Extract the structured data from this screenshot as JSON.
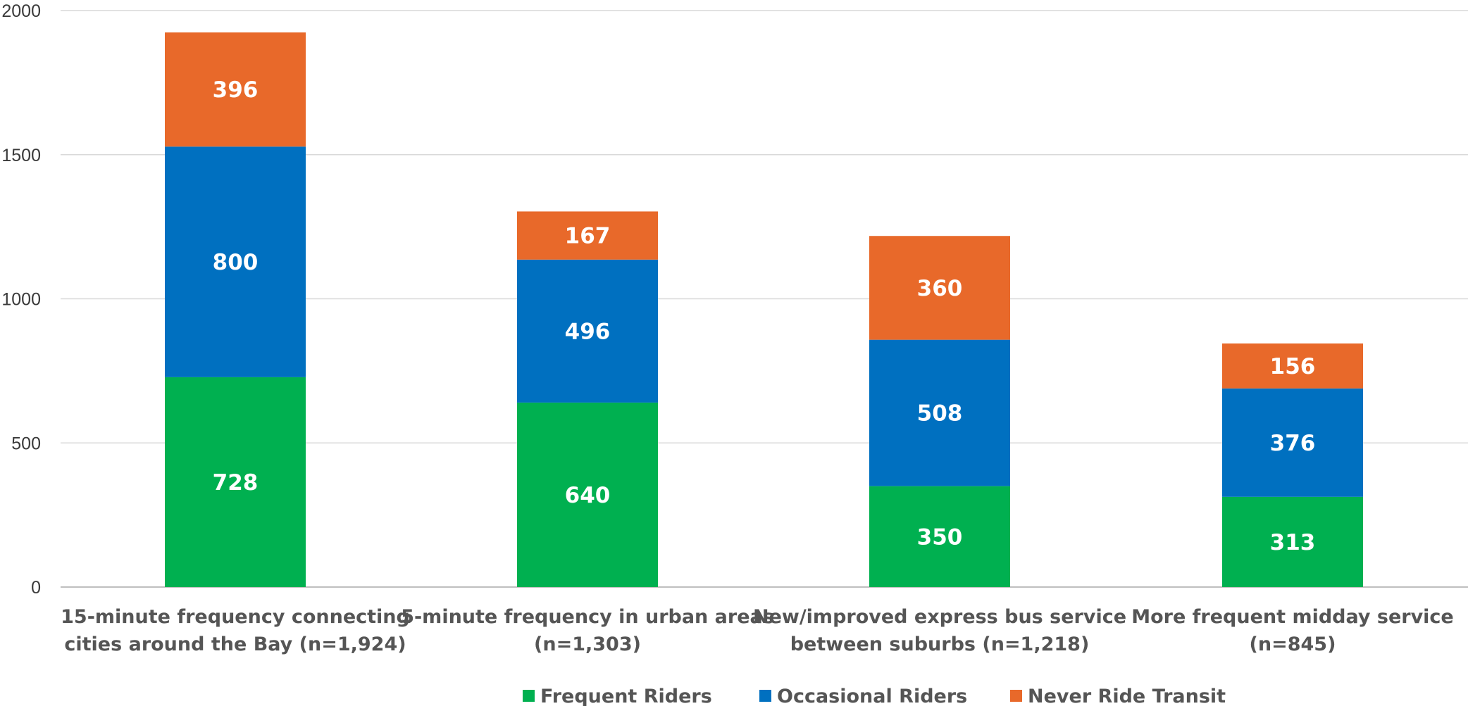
{
  "chart_data": {
    "type": "bar",
    "stacked": true,
    "title": "",
    "xlabel": "",
    "ylabel": "",
    "ylim": [
      0,
      2000
    ],
    "yticks": [
      0,
      500,
      1000,
      1500,
      2000
    ],
    "grid": true,
    "legend_position": "bottom",
    "categories": [
      [
        "15-minute frequency connecting",
        "cities around the Bay (n=1,924)"
      ],
      [
        "5-minute frequency in urban areas",
        "(n=1,303)"
      ],
      [
        "New/improved express bus service",
        "between suburbs (n=1,218)"
      ],
      [
        "More frequent midday service",
        "(n=845)"
      ]
    ],
    "series": [
      {
        "name": "Frequent Riders",
        "color": "#00b050",
        "values": [
          728,
          640,
          350,
          313
        ]
      },
      {
        "name": "Occasional Riders",
        "color": "#0070c0",
        "values": [
          800,
          496,
          508,
          376
        ]
      },
      {
        "name": "Never Ride Transit",
        "color": "#e8692a",
        "values": [
          396,
          167,
          360,
          156
        ]
      }
    ]
  }
}
